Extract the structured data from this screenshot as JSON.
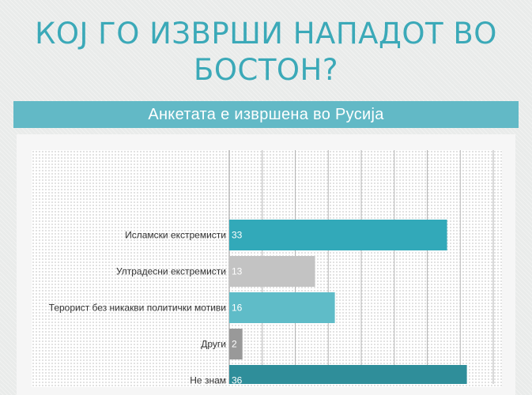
{
  "header": {
    "title_line1": "КОЈ ГО ИЗВРШИ НАПАДОТ ВО",
    "title_line2": "БОСТОН?",
    "subtitle": "Анкетата е извршена во Русија"
  },
  "chart_data": {
    "type": "bar",
    "orientation": "horizontal",
    "categories": [
      "Исламски екстремисти",
      "Ултрадесни екстремисти",
      "Терорист без никакви политички мотиви",
      "Други",
      "Не знам"
    ],
    "values": [
      33,
      13,
      16,
      2,
      36
    ],
    "bar_colors": [
      "#32a9b9",
      "#c3c3c3",
      "#5fbcc8",
      "#999999",
      "#2f8e9a"
    ],
    "xlim": [
      0,
      40
    ],
    "grid": true
  }
}
